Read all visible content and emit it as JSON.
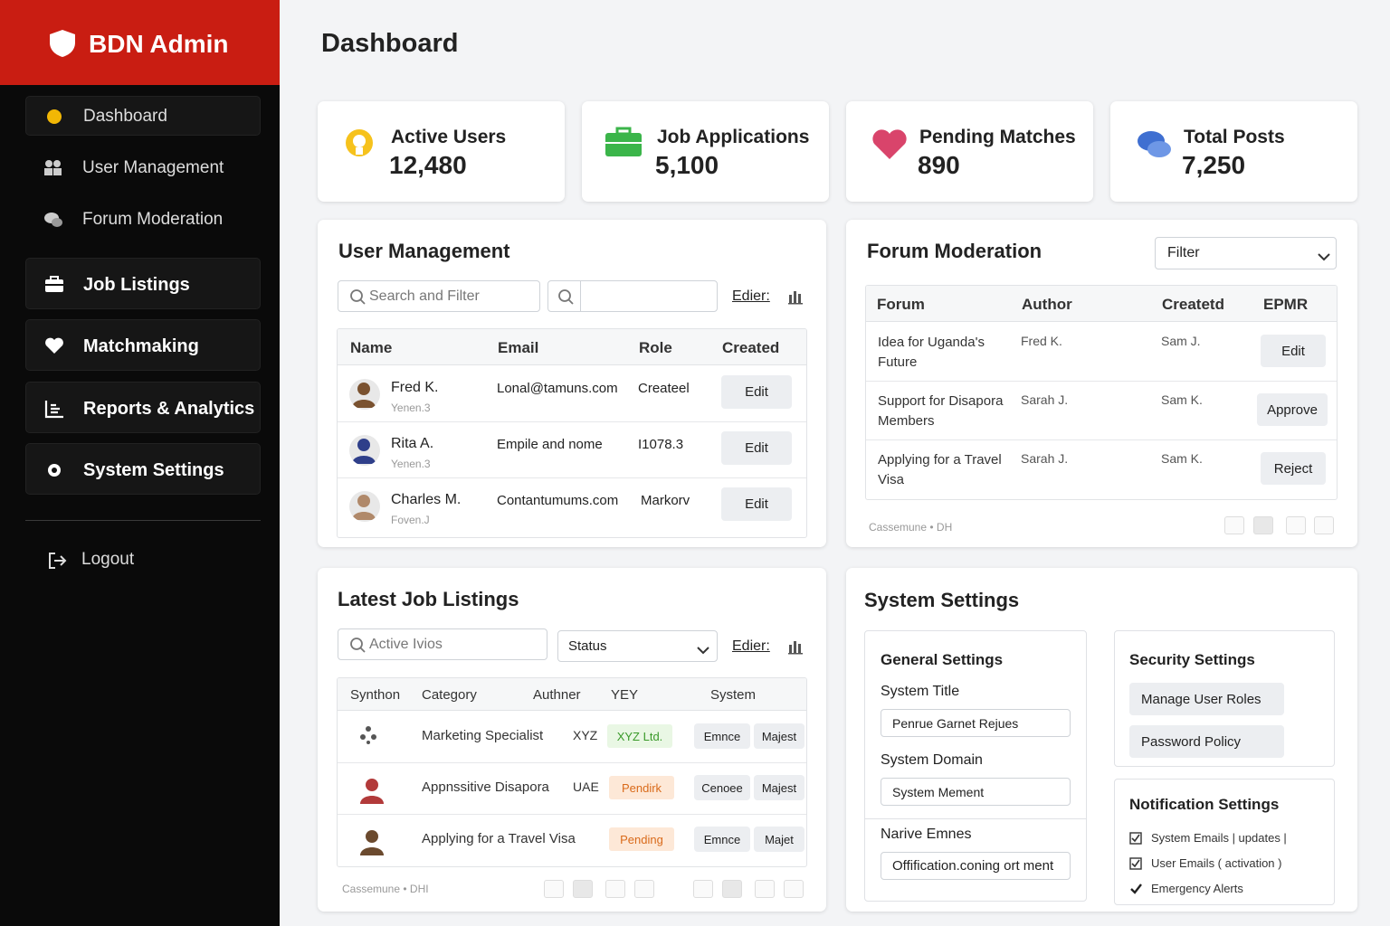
{
  "sidebar": {
    "brand": "BDN Admin",
    "nav": [
      "Dashboard",
      "User Management",
      "Forum Moderation",
      "Job Listings",
      "Matchmaking",
      "Reports & Analytics",
      "System Settings"
    ],
    "logout": "Logout"
  },
  "header": {
    "title": "Dashboard"
  },
  "stats": [
    {
      "label": "Active Users",
      "value": "12,480"
    },
    {
      "label": "Job Applications",
      "value": "5,100"
    },
    {
      "label": "Pending Matches",
      "value": "890"
    },
    {
      "label": "Total Posts",
      "value": "7,250"
    }
  ],
  "user_management": {
    "title": "User Management",
    "search_placeholder": "Search and Filter",
    "edit_link": "Edier:",
    "columns": [
      "Name",
      "Email",
      "Role",
      "Created"
    ],
    "rows": [
      {
        "name": "Fred K.",
        "sub": "Yenen.3",
        "email": "Lonal@tamuns.com",
        "role": "Createel",
        "action": "Edit"
      },
      {
        "name": "Rita A.",
        "sub": "Yenen.3",
        "email": "Empile and nome",
        "role": "I1078.3",
        "action": "Edit"
      },
      {
        "name": "Charles M.",
        "sub": "Foven.J",
        "email": "Contantumums.com",
        "role": "Markorv",
        "action": "Edit"
      }
    ]
  },
  "forum_moderation": {
    "title": "Forum Moderation",
    "filter": "Filter",
    "columns": [
      "Forum",
      "Author",
      "Createtd",
      "EPMR"
    ],
    "rows": [
      {
        "forum": "Idea for Uganda's Future",
        "author": "Fred K.",
        "created": "Sam J.",
        "action": "Edit"
      },
      {
        "forum": "Support for Disapora Members",
        "author": "Sarah J.",
        "created": "Sam K.",
        "action": "Approve"
      },
      {
        "forum": "Applying for a Travel Visa",
        "author": "Sarah J.",
        "created": "Sam K.",
        "action": "Reject"
      }
    ],
    "footer": "Cassemune • DH"
  },
  "job_listings": {
    "title": "Latest Job Listings",
    "search_placeholder": "Active Ivios",
    "status": "Status",
    "edit_link": "Edier:",
    "columns": [
      "Synthon",
      "Category",
      "Authner",
      "YEY",
      "System"
    ],
    "rows": [
      {
        "category": "Marketing Specialist",
        "author": "XYZ",
        "status": "XYZ Ltd.",
        "actions": [
          "Emnce",
          "Majest"
        ]
      },
      {
        "category": "Appnssitive Disapora",
        "author": "UAE",
        "status": "Pendirk",
        "actions": [
          "Cenoee",
          "Majest"
        ]
      },
      {
        "category": "Applying for a Travel Visa",
        "author": "",
        "status": "Pending",
        "actions": [
          "Emnce",
          "Majet"
        ]
      }
    ],
    "footer": "Cassemune • DHI"
  },
  "system_settings": {
    "title": "System Settings",
    "general": {
      "title": "General Settings",
      "fields": [
        {
          "label": "System Title",
          "value": "Penrue Garnet Rejues"
        },
        {
          "label": "System Domain",
          "value": "System Mement"
        },
        {
          "label": "Narive Emnes",
          "value": "Offification.coning ort ment"
        }
      ]
    },
    "security": {
      "title": "Security Settings",
      "buttons": [
        "Manage User Roles",
        "Password Policy"
      ]
    },
    "notification": {
      "title": "Notification Settings",
      "items": [
        "System Emails | updates |",
        "User Emails ( activation )",
        "Emergency Alerts"
      ]
    }
  }
}
